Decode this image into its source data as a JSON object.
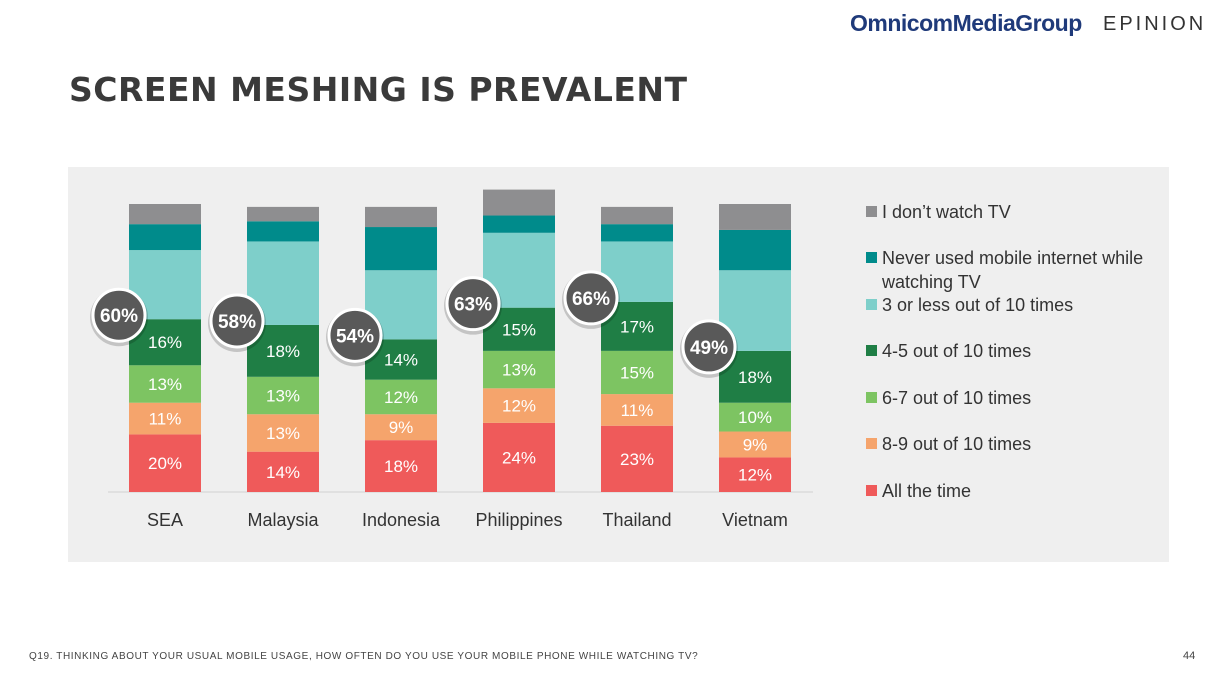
{
  "header": {
    "brand_left": "OmnicomMediaGroup",
    "brand_right": "EPINION",
    "title": "SCREEN MESHING IS PREVALENT"
  },
  "footer": {
    "note": "Q19. THINKING ABOUT YOUR USUAL MOBILE USAGE, HOW OFTEN DO YOU USE YOUR MOBILE PHONE WHILE WATCHING TV?",
    "page": "44"
  },
  "colors": {
    "dont_watch": "#8e8e90",
    "never_used": "#008b8b",
    "three_or_less": "#7ecfca",
    "four_five": "#1f7e45",
    "six_seven": "#7dc462",
    "eight_nine": "#f5a46c",
    "all_the_time": "#ef5a5a",
    "bubble": "#595959"
  },
  "chart_data": {
    "type": "stacked-bar",
    "categories": [
      "SEA",
      "Malaysia",
      "Indonesia",
      "Philippines",
      "Thailand",
      "Vietnam"
    ],
    "totals_label": [
      "60%",
      "58%",
      "54%",
      "63%",
      "66%",
      "49%"
    ],
    "series": [
      {
        "key": "all_the_time",
        "name": "All the time",
        "values": [
          20,
          14,
          18,
          24,
          23,
          12
        ],
        "labels": [
          "20%",
          "14%",
          "18%",
          "24%",
          "23%",
          "12%"
        ]
      },
      {
        "key": "eight_nine",
        "name": "8-9 out of 10 times",
        "values": [
          11,
          13,
          9,
          12,
          11,
          9
        ],
        "labels": [
          "11%",
          "13%",
          "9%",
          "12%",
          "11%",
          "9%"
        ]
      },
      {
        "key": "six_seven",
        "name": "6-7 out of 10 times",
        "values": [
          13,
          13,
          12,
          13,
          15,
          10
        ],
        "labels": [
          "13%",
          "13%",
          "12%",
          "13%",
          "15%",
          "10%"
        ]
      },
      {
        "key": "four_five",
        "name": "4-5 out of 10 times",
        "values": [
          16,
          18,
          14,
          15,
          17,
          18
        ],
        "labels": [
          "16%",
          "18%",
          "14%",
          "15%",
          "17%",
          "18%"
        ]
      },
      {
        "key": "three_or_less",
        "name": "3 or less out of 10 times",
        "values": [
          24,
          29,
          24,
          26,
          21,
          28
        ],
        "labels": null
      },
      {
        "key": "never_used",
        "name": "Never used mobile internet while watching TV",
        "values": [
          9,
          7,
          15,
          6,
          6,
          14
        ],
        "labels": null
      },
      {
        "key": "dont_watch",
        "name": "I don’t watch TV",
        "values": [
          7,
          5,
          7,
          9,
          6,
          9
        ],
        "labels": null
      }
    ],
    "legend_order": [
      "dont_watch",
      "never_used",
      "three_or_less",
      "four_five",
      "six_seven",
      "eight_nine",
      "all_the_time"
    ],
    "ylim": [
      0,
      100
    ],
    "legend_position": "right"
  }
}
